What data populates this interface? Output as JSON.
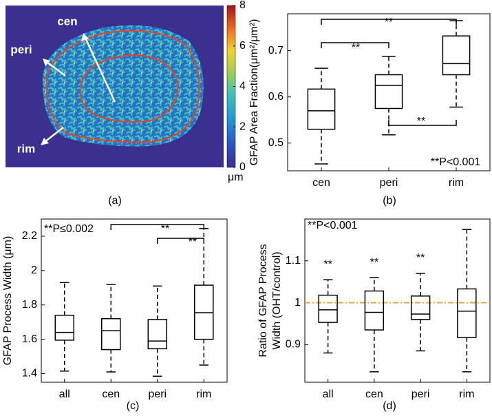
{
  "chart_data": [
    {
      "type": "image",
      "caption": "(a)",
      "labels": [
        "cen",
        "peri",
        "rim"
      ],
      "clim": [
        0,
        8
      ],
      "cticks": [
        0,
        2,
        4,
        6,
        8
      ],
      "colorbar_label": "μm"
    },
    {
      "type": "box",
      "caption": "(b)",
      "ylabel": [
        "GFAP Area Fraction(μm²/μm²)"
      ],
      "categories": [
        "cen",
        "peri",
        "rim"
      ],
      "boxes": [
        {
          "whislo": 0.455,
          "q1": 0.53,
          "med": 0.57,
          "q3": 0.617,
          "whishi": 0.662
        },
        {
          "whislo": 0.518,
          "q1": 0.575,
          "med": 0.625,
          "q3": 0.648,
          "whishi": 0.688
        },
        {
          "whislo": 0.578,
          "q1": 0.648,
          "med": 0.672,
          "q3": 0.732,
          "whishi": 0.765
        }
      ],
      "ylim": [
        0.44,
        0.78
      ],
      "yticks": [
        0.5,
        0.6,
        0.7
      ],
      "annotations": [
        "**",
        "**",
        "**",
        "**P<0.001"
      ]
    },
    {
      "type": "box",
      "caption": "(c)",
      "ylabel": [
        "GFAP Process Width (μm)"
      ],
      "categories": [
        "all",
        "cen",
        "peri",
        "rim"
      ],
      "boxes": [
        {
          "whislo": 1.415,
          "q1": 1.595,
          "med": 1.64,
          "q3": 1.74,
          "whishi": 1.93
        },
        {
          "whislo": 1.41,
          "q1": 1.54,
          "med": 1.65,
          "q3": 1.72,
          "whishi": 1.92
        },
        {
          "whislo": 1.385,
          "q1": 1.545,
          "med": 1.59,
          "q3": 1.715,
          "whishi": 1.91
        },
        {
          "whislo": 1.45,
          "q1": 1.6,
          "med": 1.755,
          "q3": 1.915,
          "whishi": 2.245
        }
      ],
      "ylim": [
        1.35,
        2.3
      ],
      "yticks": [
        1.4,
        1.6,
        1.8,
        2,
        2.2
      ],
      "annotations": [
        "**P≤0.002",
        "**",
        "**"
      ]
    },
    {
      "type": "box",
      "caption": "(d)",
      "ylabel": [
        "Ratio of GFAP Process",
        "Width (OHT/control)"
      ],
      "categories": [
        "all",
        "cen",
        "peri",
        "rim"
      ],
      "boxes": [
        {
          "whislo": 0.88,
          "q1": 0.953,
          "med": 0.983,
          "q3": 1.018,
          "whishi": 1.055
        },
        {
          "whislo": 0.835,
          "q1": 0.935,
          "med": 0.977,
          "q3": 1.028,
          "whishi": 1.06
        },
        {
          "whislo": 0.885,
          "q1": 0.96,
          "med": 0.973,
          "q3": 1.016,
          "whishi": 1.07
        },
        {
          "whislo": 0.835,
          "q1": 0.917,
          "med": 0.98,
          "q3": 1.033,
          "whishi": 1.175
        }
      ],
      "ylim": [
        0.81,
        1.2
      ],
      "yticks": [
        0.9,
        1,
        1.1
      ],
      "ref_line": 1,
      "ref_color": "#e8a33a",
      "annotations": [
        "**P<0.001",
        "**",
        "**",
        "**"
      ]
    }
  ]
}
